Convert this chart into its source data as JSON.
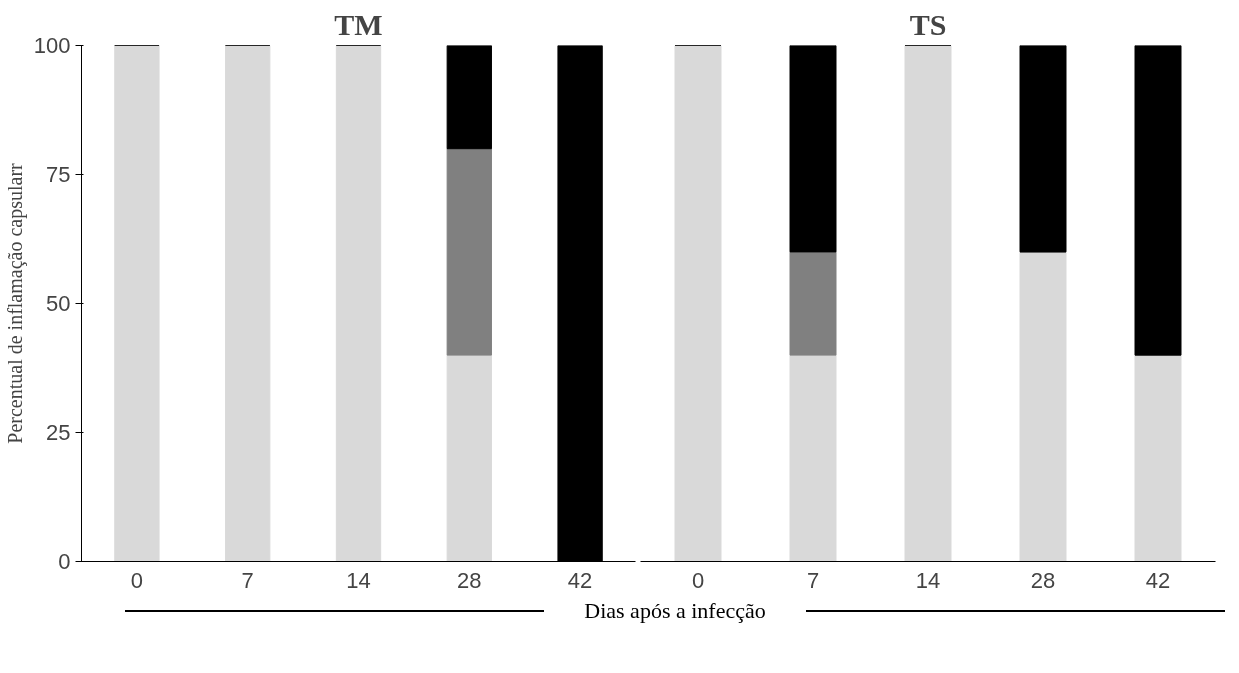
{
  "chart_data": [
    {
      "type": "bar",
      "title": "TM",
      "stacked": true,
      "categories": [
        "0",
        "7",
        "14",
        "28",
        "42"
      ],
      "ylim": [
        0,
        100
      ],
      "yticks": [
        0,
        25,
        50,
        75,
        100
      ],
      "ylabel": "Percentual de inflamação capsularr",
      "xlabel": "Dias após a infecção",
      "grid": false,
      "series": [
        {
          "color": "#d9d9d9",
          "values": [
            100,
            100,
            100,
            40,
            0
          ]
        },
        {
          "color": "#808080",
          "values": [
            0,
            0,
            0,
            40,
            0
          ]
        },
        {
          "color": "#000000",
          "values": [
            0,
            0,
            0,
            20,
            100
          ]
        }
      ]
    },
    {
      "type": "bar",
      "title": "TS",
      "stacked": true,
      "categories": [
        "0",
        "7",
        "14",
        "28",
        "42"
      ],
      "ylim": [
        0,
        100
      ],
      "yticks": [
        0,
        25,
        50,
        75,
        100
      ],
      "tick_labels": "x",
      "grid": false,
      "series": [
        {
          "color": "#d9d9d9",
          "values": [
            100,
            40,
            100,
            60,
            40
          ]
        },
        {
          "color": "#808080",
          "values": [
            0,
            20,
            0,
            0,
            0
          ]
        },
        {
          "color": "#000000",
          "values": [
            0,
            40,
            0,
            40,
            60
          ]
        }
      ]
    }
  ]
}
